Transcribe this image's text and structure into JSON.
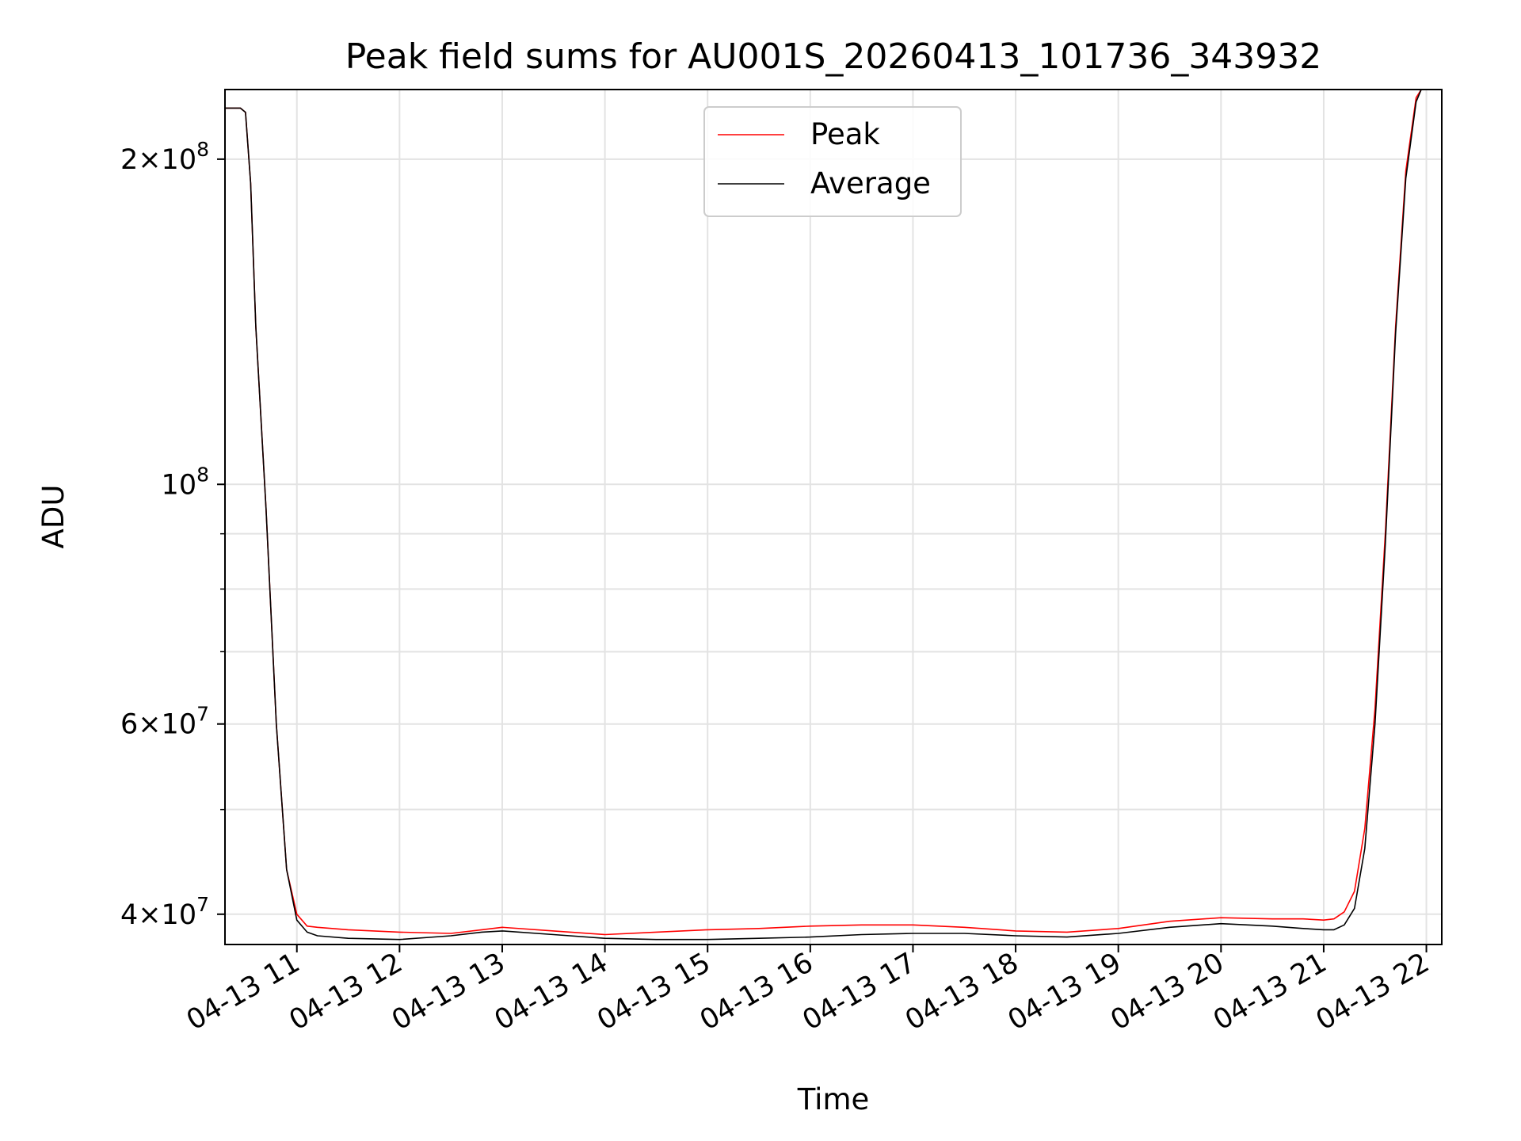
{
  "chart_data": {
    "type": "line",
    "title": "Peak field sums for AU001S_20260413_101736_343932",
    "xlabel": "Time",
    "ylabel": "ADU",
    "yscale": "log",
    "ylim": [
      37500000,
      232000000
    ],
    "xlim": [
      10.3,
      22.15
    ],
    "grid": true,
    "legend_position": "top-center",
    "x_ticks": [
      {
        "value": 11,
        "label": "04-13 11"
      },
      {
        "value": 12,
        "label": "04-13 12"
      },
      {
        "value": 13,
        "label": "04-13 13"
      },
      {
        "value": 14,
        "label": "04-13 14"
      },
      {
        "value": 15,
        "label": "04-13 15"
      },
      {
        "value": 16,
        "label": "04-13 16"
      },
      {
        "value": 17,
        "label": "04-13 17"
      },
      {
        "value": 18,
        "label": "04-13 18"
      },
      {
        "value": 19,
        "label": "04-13 19"
      },
      {
        "value": 20,
        "label": "04-13 20"
      },
      {
        "value": 21,
        "label": "04-13 21"
      },
      {
        "value": 22,
        "label": "04-13 22"
      }
    ],
    "y_major_ticks": [
      {
        "value": 40000000,
        "mantissa": "4",
        "exponent": "7"
      },
      {
        "value": 60000000,
        "mantissa": "6",
        "exponent": "7"
      },
      {
        "value": 100000000,
        "mantissa": "",
        "exponent": "8"
      },
      {
        "value": 200000000,
        "mantissa": "2",
        "exponent": "8"
      }
    ],
    "y_minor_ticks": [
      50000000,
      70000000,
      80000000,
      90000000
    ],
    "series": [
      {
        "name": "Peak",
        "color": "#ff0000",
        "x": [
          10.3,
          10.45,
          10.5,
          10.55,
          10.6,
          10.7,
          10.8,
          10.9,
          11.0,
          11.1,
          11.2,
          11.5,
          12.0,
          12.5,
          12.8,
          13.0,
          13.5,
          14.0,
          14.5,
          15.0,
          15.5,
          16.0,
          16.5,
          17.0,
          17.5,
          18.0,
          18.5,
          19.0,
          19.5,
          20.0,
          20.5,
          20.8,
          21.0,
          21.1,
          21.2,
          21.3,
          21.4,
          21.5,
          21.6,
          21.7,
          21.8,
          21.9,
          21.95,
          22.0,
          22.15
        ],
        "y": [
          223000000,
          223000000,
          221000000,
          190000000,
          140000000,
          95000000,
          60000000,
          44000000,
          40000000,
          39000000,
          38900000,
          38700000,
          38500000,
          38400000,
          38700000,
          38900000,
          38600000,
          38300000,
          38500000,
          38700000,
          38800000,
          39000000,
          39100000,
          39100000,
          38900000,
          38600000,
          38500000,
          38800000,
          39400000,
          39700000,
          39600000,
          39600000,
          39500000,
          39600000,
          40200000,
          42000000,
          48000000,
          62000000,
          90000000,
          140000000,
          195000000,
          228000000,
          232000000,
          232000000,
          232000000
        ]
      },
      {
        "name": "Average",
        "color": "#000000",
        "x": [
          10.3,
          10.45,
          10.5,
          10.55,
          10.6,
          10.7,
          10.8,
          10.9,
          11.0,
          11.1,
          11.2,
          11.5,
          12.0,
          12.5,
          12.8,
          13.0,
          13.5,
          14.0,
          14.5,
          15.0,
          15.5,
          16.0,
          16.5,
          17.0,
          17.5,
          18.0,
          18.5,
          19.0,
          19.5,
          20.0,
          20.5,
          20.8,
          21.0,
          21.1,
          21.2,
          21.3,
          21.4,
          21.5,
          21.6,
          21.7,
          21.8,
          21.9,
          21.95,
          22.0,
          22.15
        ],
        "y": [
          223000000,
          223000000,
          221000000,
          190000000,
          140000000,
          95000000,
          60000000,
          44000000,
          39500000,
          38500000,
          38200000,
          38000000,
          37900000,
          38200000,
          38500000,
          38600000,
          38300000,
          38000000,
          37900000,
          37900000,
          38000000,
          38100000,
          38300000,
          38400000,
          38400000,
          38200000,
          38100000,
          38400000,
          38900000,
          39200000,
          39000000,
          38800000,
          38700000,
          38700000,
          39100000,
          40500000,
          46000000,
          60000000,
          88000000,
          138000000,
          192000000,
          226000000,
          232000000,
          232000000,
          232000000
        ]
      }
    ]
  }
}
